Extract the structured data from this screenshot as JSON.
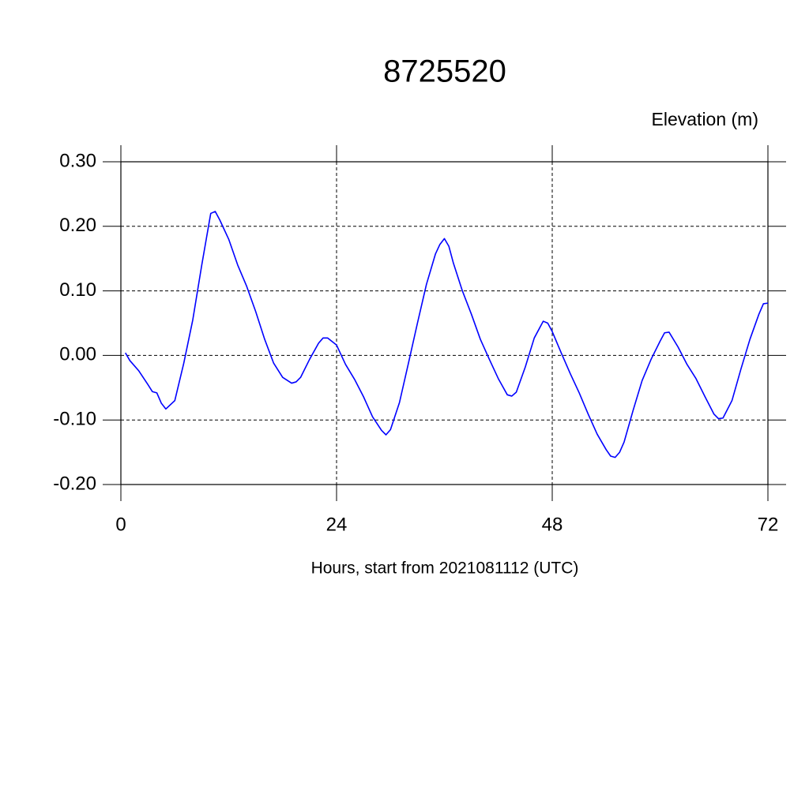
{
  "chart_data": {
    "type": "line",
    "title": "8725520",
    "subtitle": "Elevation (m)",
    "xlabel": "Hours, start from 2021081112 (UTC)",
    "xlim": [
      0,
      72
    ],
    "xticks": [
      0,
      24,
      48,
      72
    ],
    "ylim": [
      -0.2,
      0.3
    ],
    "yticks": [
      {
        "value": -0.2,
        "label": "-0.20"
      },
      {
        "value": -0.1,
        "label": "-0.10"
      },
      {
        "value": 0,
        "label": "0.00"
      },
      {
        "value": 0.1,
        "label": "0.10"
      },
      {
        "value": 0.2,
        "label": "0.20"
      },
      {
        "value": 0.3,
        "label": "0.30"
      }
    ],
    "grid": true,
    "series": [
      {
        "color": "#0000ff",
        "x": [
          0.5,
          1,
          2,
          3,
          3.5,
          4,
          4.5,
          5,
          6,
          7,
          8,
          9,
          9.5,
          10,
          10.5,
          11,
          12,
          13,
          14,
          15,
          16,
          17,
          18,
          19,
          19.5,
          20,
          21,
          22,
          22.5,
          23,
          24,
          25,
          26,
          27,
          28,
          29,
          29.5,
          30,
          31,
          32,
          33,
          34,
          35,
          35.5,
          36,
          36.5,
          37,
          38,
          39,
          40,
          41,
          42,
          43,
          43.5,
          44,
          45,
          46,
          47,
          47.5,
          48,
          49,
          50,
          51,
          52,
          53,
          54,
          54.5,
          55,
          55.5,
          56,
          57,
          58,
          59,
          60,
          60.5,
          61,
          62,
          63,
          64,
          65,
          66,
          66.5,
          67,
          68,
          69,
          70,
          71,
          71.5,
          72
        ],
        "values": [
          0.004,
          -0.008,
          -0.024,
          -0.045,
          -0.056,
          -0.058,
          -0.074,
          -0.083,
          -0.07,
          -0.012,
          0.055,
          0.14,
          0.18,
          0.22,
          0.223,
          0.21,
          0.18,
          0.14,
          0.107,
          0.068,
          0.025,
          -0.012,
          -0.034,
          -0.043,
          -0.041,
          -0.034,
          -0.006,
          0.019,
          0.027,
          0.027,
          0.016,
          -0.014,
          -0.037,
          -0.064,
          -0.095,
          -0.116,
          -0.123,
          -0.115,
          -0.073,
          -0.012,
          0.05,
          0.11,
          0.157,
          0.172,
          0.181,
          0.169,
          0.143,
          0.1,
          0.064,
          0.025,
          -0.006,
          -0.036,
          -0.061,
          -0.063,
          -0.057,
          -0.018,
          0.027,
          0.053,
          0.05,
          0.037,
          0.004,
          -0.028,
          -0.058,
          -0.091,
          -0.122,
          -0.146,
          -0.156,
          -0.158,
          -0.15,
          -0.134,
          -0.085,
          -0.039,
          -0.006,
          0.022,
          0.035,
          0.036,
          0.013,
          -0.014,
          -0.036,
          -0.064,
          -0.091,
          -0.098,
          -0.097,
          -0.07,
          -0.021,
          0.025,
          0.064,
          0.08,
          0.081
        ]
      }
    ]
  }
}
